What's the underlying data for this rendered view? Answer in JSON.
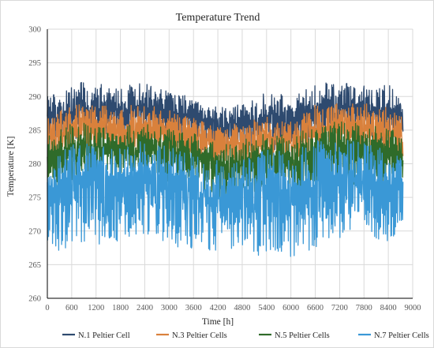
{
  "chart_data": {
    "type": "line",
    "title": "Temperature Trend",
    "xlabel": "Time [h]",
    "ylabel": "Temperature [K]",
    "xlim": [
      0,
      9000
    ],
    "ylim": [
      260,
      300
    ],
    "x_ticks": [
      0,
      600,
      1200,
      1800,
      2400,
      3000,
      3600,
      4200,
      4800,
      5400,
      6000,
      6600,
      7200,
      7800,
      8400,
      9000
    ],
    "y_ticks": [
      260,
      265,
      270,
      275,
      280,
      285,
      290,
      295,
      300
    ],
    "x_tick_labels": [
      "0",
      "600",
      "1200",
      "1800",
      "2400",
      "3000",
      "3600",
      "4200",
      "4800",
      "5400",
      "6000",
      "6600",
      "7200",
      "7800",
      "8400",
      "9000"
    ],
    "y_tick_labels": [
      "260",
      "265",
      "270",
      "275",
      "280",
      "285",
      "290",
      "295",
      "300"
    ],
    "grid": true,
    "legend_position": "bottom",
    "series": [
      {
        "name": "N.1 Peltier Cell",
        "color": "#2e4a6f",
        "x": [
          0,
          300,
          600,
          900,
          1200,
          1500,
          1800,
          2100,
          2400,
          2700,
          3000,
          3300,
          3600,
          3900,
          4200,
          4500,
          4800,
          5100,
          5400,
          5700,
          6000,
          6300,
          6600,
          6900,
          7200,
          7500,
          7800,
          8100,
          8400,
          8700
        ],
        "center": [
          286.5,
          287,
          287.5,
          287.8,
          288,
          287.8,
          287.5,
          287.8,
          288,
          287.8,
          287.5,
          287.3,
          287,
          286.3,
          285.8,
          285.7,
          285.8,
          286,
          286.5,
          286.5,
          286,
          286.5,
          287.5,
          288,
          288,
          288,
          287.8,
          287.5,
          287.5,
          287
        ],
        "max": [
          290,
          291,
          292.5,
          292,
          292,
          291.5,
          291,
          292,
          292,
          291.5,
          291,
          290.5,
          290,
          288.5,
          288.5,
          288.5,
          289,
          290,
          290.5,
          290.5,
          290,
          291,
          292.5,
          292,
          292,
          292,
          292,
          291.5,
          292,
          290
        ],
        "min": [
          283,
          283,
          283.5,
          284,
          284,
          284,
          283.5,
          284,
          284.5,
          284,
          283.5,
          283,
          283,
          281.5,
          281,
          281,
          281.5,
          282,
          282,
          282,
          281.5,
          282.5,
          283.5,
          284,
          284,
          284,
          283.5,
          283,
          283,
          283
        ]
      },
      {
        "name": "N.3 Peltier Cells",
        "color": "#d9813c",
        "x": [
          0,
          300,
          600,
          900,
          1200,
          1500,
          1800,
          2100,
          2400,
          2700,
          3000,
          3300,
          3600,
          3900,
          4200,
          4500,
          4800,
          5100,
          5400,
          5700,
          6000,
          6300,
          6600,
          6900,
          7200,
          7500,
          7800,
          8100,
          8400,
          8700
        ],
        "center": [
          284,
          284.3,
          284.7,
          285,
          285.2,
          285,
          284.7,
          285,
          285.3,
          285,
          284.7,
          284.5,
          284.2,
          283.5,
          283,
          283,
          283,
          283.2,
          283.7,
          283.7,
          283.2,
          283.7,
          284.7,
          285.2,
          285.2,
          285.2,
          285,
          284.7,
          284.7,
          284.2
        ],
        "max": [
          287,
          288,
          289,
          289,
          289,
          288.5,
          288,
          289,
          289,
          288.5,
          288,
          287.5,
          287,
          286,
          286,
          286,
          286,
          286.5,
          287,
          287,
          286.5,
          287.5,
          289,
          289,
          289,
          289,
          289,
          288.5,
          288.5,
          287
        ],
        "min": [
          280.5,
          280.5,
          281,
          281.5,
          281.5,
          281.5,
          281,
          281.5,
          282,
          281.5,
          281,
          280.5,
          280.5,
          279.5,
          279,
          279,
          279.5,
          280,
          280,
          280,
          279.5,
          280,
          281,
          281.5,
          281.5,
          281.5,
          281,
          280.5,
          280.5,
          280.5
        ]
      },
      {
        "name": "N.5 Peltier Cells",
        "color": "#2f6b2a",
        "x": [
          0,
          300,
          600,
          900,
          1200,
          1500,
          1800,
          2100,
          2400,
          2700,
          3000,
          3300,
          3600,
          3900,
          4200,
          4500,
          4800,
          5100,
          5400,
          5700,
          6000,
          6300,
          6600,
          6900,
          7200,
          7500,
          7800,
          8100,
          8400,
          8700
        ],
        "center": [
          281,
          281.3,
          281.8,
          282,
          282.2,
          282,
          281.8,
          282,
          282.3,
          282,
          281.8,
          281.5,
          281.2,
          280.5,
          280,
          280,
          280,
          280.2,
          280.7,
          280.7,
          280.2,
          280.7,
          281.7,
          282.2,
          282.2,
          282.2,
          282,
          281.7,
          281.7,
          281.2
        ],
        "max": [
          284.5,
          285,
          286,
          286,
          286,
          285.5,
          285,
          286,
          286.5,
          286,
          285.5,
          285,
          284.5,
          283.5,
          283,
          283,
          283.5,
          284,
          284.5,
          284.5,
          284,
          285,
          286,
          286.5,
          286.5,
          286.5,
          286,
          285.5,
          285.5,
          284.5
        ],
        "min": [
          276.5,
          276.5,
          277,
          277.5,
          277.5,
          277.5,
          277,
          277.5,
          278,
          277.5,
          277,
          276.5,
          276,
          275,
          274.5,
          274.5,
          275,
          275.5,
          275.5,
          275.5,
          275,
          275.5,
          276.5,
          277,
          277,
          277,
          276.5,
          276,
          276,
          276
        ]
      },
      {
        "name": "N.7 Peltier Cells",
        "color": "#3a98d6",
        "x": [
          0,
          300,
          600,
          900,
          1200,
          1500,
          1800,
          2100,
          2400,
          2700,
          3000,
          3300,
          3600,
          3900,
          4200,
          4500,
          4800,
          5100,
          5400,
          5700,
          6000,
          6300,
          6600,
          6900,
          7200,
          7500,
          7800,
          8100,
          8400,
          8700
        ],
        "center": [
          276,
          276.3,
          276.8,
          277.2,
          277.5,
          277.2,
          276.8,
          277.2,
          277.5,
          277.2,
          276.8,
          276.5,
          276,
          275,
          274.5,
          274.5,
          274.7,
          275,
          275.5,
          275.5,
          275,
          275.7,
          276.8,
          277.5,
          277.5,
          277.5,
          277.2,
          276.8,
          276.8,
          276
        ],
        "max": [
          281,
          282,
          283,
          283,
          283.5,
          283,
          282.5,
          283,
          283.5,
          283,
          282.5,
          282,
          281.5,
          280.5,
          280.5,
          280.5,
          281,
          281.5,
          282,
          282,
          281.5,
          282.5,
          283.5,
          283.5,
          283.5,
          283.5,
          283,
          282.5,
          282.5,
          281
        ],
        "min": [
          268.5,
          267,
          268,
          268.5,
          267.5,
          268.5,
          268,
          269,
          269.5,
          269,
          268,
          267.5,
          266.5,
          266,
          267,
          267,
          267.5,
          266,
          267,
          267,
          265,
          266.5,
          267.5,
          269,
          269,
          269,
          268.5,
          268,
          268.5,
          269
        ]
      }
    ]
  }
}
